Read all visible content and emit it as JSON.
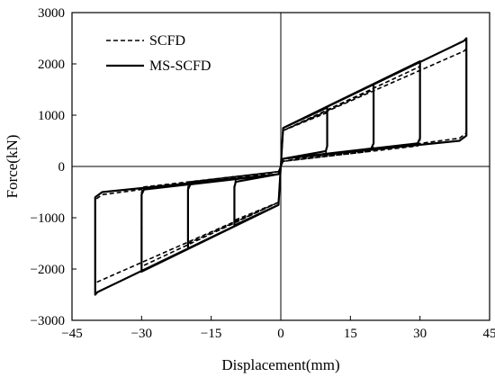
{
  "chart_data": {
    "type": "line",
    "xlabel": "Displacement(mm)",
    "ylabel": "Force(kN)",
    "xlim": [
      -45,
      45
    ],
    "ylim": [
      -3000,
      3000
    ],
    "xticks": [
      -45,
      -30,
      -15,
      0,
      15,
      30,
      45
    ],
    "yticks": [
      -3000,
      -2000,
      -1000,
      0,
      1000,
      2000,
      3000
    ],
    "xtick_labels": [
      "−45",
      "−30",
      "−15",
      "0",
      "15",
      "30",
      "45"
    ],
    "ytick_labels": [
      "−3000",
      "−2000",
      "−1000",
      "0",
      "1000",
      "2000",
      "3000"
    ],
    "zero_lines": true,
    "legend_position": "top-left",
    "series": [
      {
        "name": "SCFD",
        "style": "dashed",
        "color": "#000000",
        "x": [
          0,
          0.5,
          10,
          10,
          9.7,
          0.5,
          0,
          -0.5,
          -10,
          -10,
          -9.7,
          -0.5,
          0,
          0.5,
          20,
          20,
          19.5,
          0.5,
          0,
          -0.5,
          -20,
          -20,
          -19.5,
          -0.5,
          0,
          0.5,
          30,
          30,
          29.5,
          0.5,
          0,
          -0.5,
          -30,
          -30,
          -29.5,
          -0.5,
          0,
          0.5,
          39.5,
          40,
          40,
          38.5,
          0.5,
          0,
          -0.5,
          -39.5,
          -40,
          -40,
          -38.5,
          -0.5,
          0
        ],
        "y": [
          0,
          700,
          1050,
          400,
          250,
          100,
          0,
          -700,
          -1050,
          -400,
          -250,
          -100,
          0,
          700,
          1500,
          400,
          300,
          100,
          0,
          -700,
          -1500,
          -400,
          -300,
          -100,
          0,
          700,
          1950,
          500,
          400,
          100,
          0,
          -700,
          -1950,
          -500,
          -400,
          -100,
          0,
          700,
          2250,
          2300,
          650,
          550,
          100,
          0,
          -700,
          -2250,
          -2300,
          -650,
          -550,
          -100,
          0
        ]
      },
      {
        "name": "MS-SCFD",
        "style": "solid",
        "color": "#000000",
        "x": [
          0,
          0.5,
          10,
          10,
          9.7,
          0.5,
          0,
          -0.5,
          -10,
          -10,
          -9.7,
          -0.5,
          0,
          0.5,
          20,
          20,
          19.5,
          0.5,
          0,
          -0.5,
          -20,
          -20,
          -19.5,
          -0.5,
          0,
          0.5,
          30,
          30,
          29.5,
          0.5,
          0,
          -0.5,
          -30,
          -30,
          -29.5,
          -0.5,
          0,
          0.5,
          39.5,
          40,
          40,
          38.5,
          0.5,
          0,
          -0.5,
          -39.5,
          -40,
          -40,
          -38.5,
          -0.5,
          0
        ],
        "y": [
          0,
          750,
          1150,
          400,
          300,
          150,
          0,
          -750,
          -1150,
          -400,
          -300,
          -150,
          0,
          750,
          1600,
          450,
          350,
          150,
          0,
          -750,
          -1600,
          -450,
          -350,
          -150,
          0,
          750,
          2050,
          550,
          450,
          150,
          0,
          -750,
          -2050,
          -550,
          -450,
          -150,
          0,
          750,
          2450,
          2500,
          600,
          500,
          150,
          0,
          -750,
          -2450,
          -2500,
          -600,
          -500,
          -150,
          0
        ]
      }
    ]
  }
}
